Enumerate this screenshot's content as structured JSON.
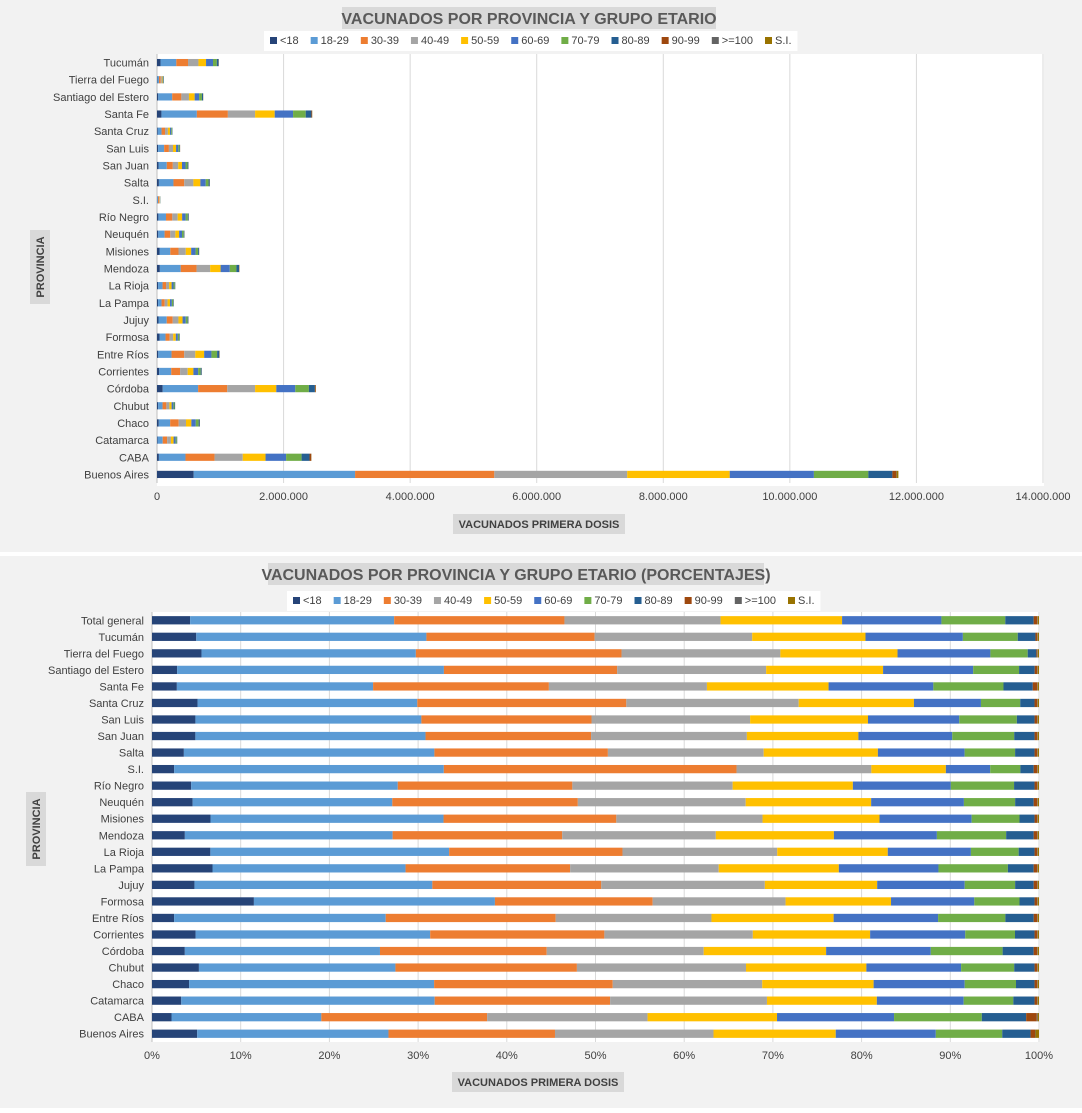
{
  "chart_data": [
    {
      "type": "bar",
      "orientation": "horizontal",
      "stacked": true,
      "title": "VACUNADOS POR PROVINCIA Y GRUPO ETARIO",
      "xlabel": "VACUNADOS PRIMERA  DOSIS",
      "ylabel": "PROVINCIA",
      "xlim": [
        0,
        14000000
      ],
      "x_ticks": [
        "0",
        "2.000.000",
        "4.000.000",
        "6.000.000",
        "8.000.000",
        "10.000.000",
        "12.000.000",
        "14.000.000"
      ],
      "grid": true,
      "legend_position": "top",
      "categories": [
        "Tucumán",
        "Tierra del Fuego",
        "Santiago del Estero",
        "Santa Fe",
        "Santa Cruz",
        "San Luis",
        "San Juan",
        "Salta",
        "S.I.",
        "Río Negro",
        "Neuquén",
        "Misiones",
        "Mendoza",
        "La Rioja",
        "La Pampa",
        "Jujuy",
        "Formosa",
        "Entre Ríos",
        "Corrientes",
        "Córdoba",
        "Chubut",
        "Chaco",
        "Catamarca",
        "CABA",
        "Buenos Aires"
      ],
      "series": [
        {
          "name": "<18",
          "values": [
            55000,
            6000,
            20000,
            70000,
            12000,
            18000,
            25000,
            30000,
            2000,
            22000,
            20000,
            40000,
            45000,
            18000,
            17000,
            24000,
            40000,
            20000,
            35000,
            90000,
            18000,
            28000,
            10000,
            30000,
            580000
          ]
        },
        {
          "name": "18-29",
          "values": [
            250000,
            25000,
            220000,
            560000,
            60000,
            95000,
            130000,
            230000,
            15000,
            120000,
            100000,
            170000,
            330000,
            70000,
            55000,
            130000,
            95000,
            210000,
            190000,
            560000,
            70000,
            180000,
            80000,
            420000,
            2550000
          ]
        },
        {
          "name": "30-39",
          "values": [
            185000,
            28000,
            145000,
            490000,
            55000,
            75000,
            95000,
            170000,
            18000,
            100000,
            90000,
            130000,
            250000,
            55000,
            50000,
            95000,
            65000,
            200000,
            140000,
            460000,
            60000,
            135000,
            70000,
            460000,
            2200000
          ]
        },
        {
          "name": "40-49",
          "values": [
            165000,
            18000,
            120000,
            430000,
            45000,
            65000,
            85000,
            145000,
            9000,
            85000,
            80000,
            115000,
            215000,
            48000,
            45000,
            90000,
            55000,
            175000,
            120000,
            440000,
            48000,
            115000,
            60000,
            445000,
            2100000
          ]
        },
        {
          "name": "50-59",
          "values": [
            120000,
            13000,
            90000,
            310000,
            33000,
            48000,
            60000,
            110000,
            5000,
            70000,
            60000,
            85000,
            165000,
            40000,
            38000,
            65000,
            42000,
            140000,
            90000,
            335000,
            35000,
            85000,
            42000,
            360000,
            1620000
          ]
        },
        {
          "name": "60-69",
          "values": [
            110000,
            11000,
            70000,
            290000,
            20000,
            36000,
            55000,
            85000,
            3000,
            55000,
            45000,
            70000,
            145000,
            30000,
            30000,
            50000,
            33000,
            115000,
            75000,
            300000,
            28000,
            70000,
            32000,
            325000,
            1330000
          ]
        },
        {
          "name": "70-79",
          "values": [
            60000,
            6000,
            45000,
            200000,
            12000,
            20000,
            33000,
            45000,
            2000,
            35000,
            28000,
            40000,
            105000,
            20000,
            22000,
            30000,
            22000,
            90000,
            40000,
            215000,
            18000,
            45000,
            18000,
            245000,
            860000
          ]
        },
        {
          "name": "80-89",
          "values": [
            27000,
            3000,
            18000,
            90000,
            6000,
            7000,
            13000,
            18000,
            1000,
            13000,
            10000,
            15000,
            42000,
            7000,
            8000,
            12000,
            8000,
            35000,
            15000,
            95000,
            8000,
            18000,
            7000,
            125000,
            380000
          ]
        },
        {
          "name": "90-99",
          "values": [
            3000,
            200,
            2000,
            10000,
            500,
            1000,
            1500,
            2000,
            100,
            1500,
            1200,
            1500,
            5000,
            800,
            1000,
            1500,
            1000,
            4000,
            1500,
            12000,
            1000,
            2000,
            800,
            28000,
            60000
          ]
        },
        {
          "name": ">=100",
          "values": [
            200,
            10,
            150,
            800,
            50,
            80,
            100,
            150,
            10,
            100,
            80,
            100,
            400,
            60,
            80,
            100,
            60,
            300,
            100,
            900,
            60,
            150,
            60,
            1500,
            5000
          ]
        },
        {
          "name": "S.I.",
          "values": [
            1000,
            100,
            800,
            3000,
            300,
            400,
            500,
            800,
            50,
            500,
            400,
            600,
            1500,
            300,
            300,
            500,
            300,
            1200,
            500,
            3000,
            300,
            700,
            300,
            2000,
            30000
          ]
        }
      ]
    },
    {
      "type": "bar",
      "orientation": "horizontal",
      "stacked": true,
      "percent": true,
      "title": "VACUNADOS POR PROVINCIA Y GRUPO ETARIO (PORCENTAJES)",
      "xlabel": "VACUNADOS PRIMERA  DOSIS",
      "ylabel": "PROVINCIA",
      "xlim": [
        0,
        100
      ],
      "x_ticks": [
        "0%",
        "10%",
        "20%",
        "30%",
        "40%",
        "50%",
        "60%",
        "70%",
        "80%",
        "90%",
        "100%"
      ],
      "grid": true,
      "legend_position": "top",
      "categories": [
        "Total general",
        "Tucumán",
        "Tierra del Fuego",
        "Santiago del Estero",
        "Santa Fe",
        "Santa Cruz",
        "San Luis",
        "San Juan",
        "Salta",
        "S.I.",
        "Río Negro",
        "Neuquén",
        "Misiones",
        "Mendoza",
        "La Rioja",
        "La Pampa",
        "Jujuy",
        "Formosa",
        "Entre Ríos",
        "Corrientes",
        "Córdoba",
        "Chubut",
        "Chaco",
        "Catamarca",
        "CABA",
        "Buenos Aires"
      ],
      "series": [
        {
          "name": "<18",
          "values": [
            4.3,
            5.0,
            5.7,
            2.9,
            2.8,
            5.1,
            4.9,
            4.9,
            3.6,
            2.5,
            4.4,
            4.6,
            6.6,
            3.7,
            6.6,
            6.8,
            4.8,
            11.5,
            2.5,
            4.9,
            3.7,
            5.3,
            4.2,
            3.3,
            2.2,
            5.1
          ]
        },
        {
          "name": "18-29",
          "values": [
            23.0,
            26.0,
            24.7,
            30.8,
            22.1,
            24.6,
            25.5,
            26.0,
            28.3,
            30.4,
            23.2,
            22.6,
            26.3,
            23.4,
            27.0,
            21.7,
            26.9,
            27.2,
            23.9,
            26.4,
            22.0,
            22.2,
            27.7,
            28.6,
            16.9,
            21.6
          ]
        },
        {
          "name": "30-39",
          "values": [
            19.2,
            19.0,
            23.7,
            20.0,
            19.8,
            23.4,
            19.2,
            18.7,
            19.6,
            33.0,
            19.6,
            21.0,
            19.5,
            19.1,
            19.6,
            18.5,
            19.1,
            17.8,
            19.2,
            19.6,
            18.8,
            20.5,
            20.2,
            19.8,
            18.7,
            18.8
          ]
        },
        {
          "name": "40-49",
          "values": [
            17.6,
            17.8,
            18.3,
            17.2,
            17.8,
            19.3,
            17.9,
            17.6,
            17.6,
            15.2,
            18.0,
            19.0,
            16.5,
            17.3,
            17.5,
            16.7,
            18.5,
            15.0,
            17.6,
            16.7,
            17.7,
            19.1,
            16.9,
            17.7,
            18.1,
            17.9
          ]
        },
        {
          "name": "50-59",
          "values": [
            13.7,
            12.8,
            13.5,
            13.5,
            13.7,
            12.9,
            13.3,
            12.6,
            12.9,
            8.4,
            13.5,
            14.2,
            13.2,
            13.3,
            12.5,
            13.5,
            12.7,
            11.9,
            13.8,
            13.2,
            13.8,
            13.6,
            12.6,
            12.4,
            14.6,
            13.8
          ]
        },
        {
          "name": "60-69",
          "values": [
            11.2,
            11.0,
            10.7,
            10.4,
            11.8,
            7.5,
            10.3,
            10.6,
            9.8,
            5.0,
            11.0,
            10.5,
            10.4,
            11.6,
            9.4,
            11.2,
            9.9,
            9.4,
            11.8,
            10.7,
            11.8,
            10.7,
            10.3,
            9.8,
            13.2,
            11.3
          ]
        },
        {
          "name": "70-79",
          "values": [
            7.2,
            6.2,
            4.3,
            5.3,
            7.9,
            4.4,
            6.5,
            7.0,
            5.7,
            3.4,
            7.1,
            5.8,
            5.4,
            7.8,
            5.4,
            7.8,
            5.7,
            5.1,
            7.6,
            5.6,
            8.1,
            6.0,
            5.8,
            5.6,
            9.9,
            7.5
          ]
        },
        {
          "name": "80-89",
          "values": [
            3.2,
            2.0,
            1.0,
            1.8,
            3.3,
            1.6,
            2.0,
            2.3,
            2.2,
            1.5,
            2.3,
            2.1,
            1.7,
            3.1,
            1.8,
            2.9,
            2.1,
            1.7,
            3.2,
            2.2,
            3.5,
            2.3,
            2.1,
            2.4,
            5.0,
            3.2
          ]
        },
        {
          "name": "90-99",
          "values": [
            0.4,
            0.2,
            0.1,
            0.3,
            0.5,
            0.3,
            0.3,
            0.3,
            0.3,
            0.4,
            0.3,
            0.4,
            0.3,
            0.4,
            0.3,
            0.4,
            0.4,
            0.3,
            0.4,
            0.3,
            0.4,
            0.3,
            0.3,
            0.3,
            1.2,
            0.5
          ]
        },
        {
          "name": ">=100",
          "values": [
            0.05,
            0.05,
            0.05,
            0.05,
            0.05,
            0.05,
            0.05,
            0.05,
            0.05,
            0.05,
            0.05,
            0.05,
            0.05,
            0.05,
            0.05,
            0.05,
            0.05,
            0.05,
            0.05,
            0.05,
            0.05,
            0.05,
            0.05,
            0.05,
            0.1,
            0.05
          ]
        },
        {
          "name": "S.I.",
          "values": [
            0.15,
            0.15,
            0.15,
            0.15,
            0.15,
            0.15,
            0.15,
            0.15,
            0.15,
            0.15,
            0.15,
            0.15,
            0.15,
            0.15,
            0.15,
            0.15,
            0.15,
            0.15,
            0.15,
            0.15,
            0.15,
            0.15,
            0.15,
            0.15,
            0.15,
            0.4
          ]
        }
      ]
    }
  ],
  "colors": {
    "<18": "#264478",
    "18-29": "#5b9bd5",
    "30-39": "#ed7d31",
    "40-49": "#a5a5a5",
    "50-59": "#ffc000",
    "60-69": "#4472c4",
    "70-79": "#70ad47",
    "80-89": "#255e91",
    "90-99": "#9e480e",
    ">=100": "#636363",
    "S.I.": "#997300"
  }
}
